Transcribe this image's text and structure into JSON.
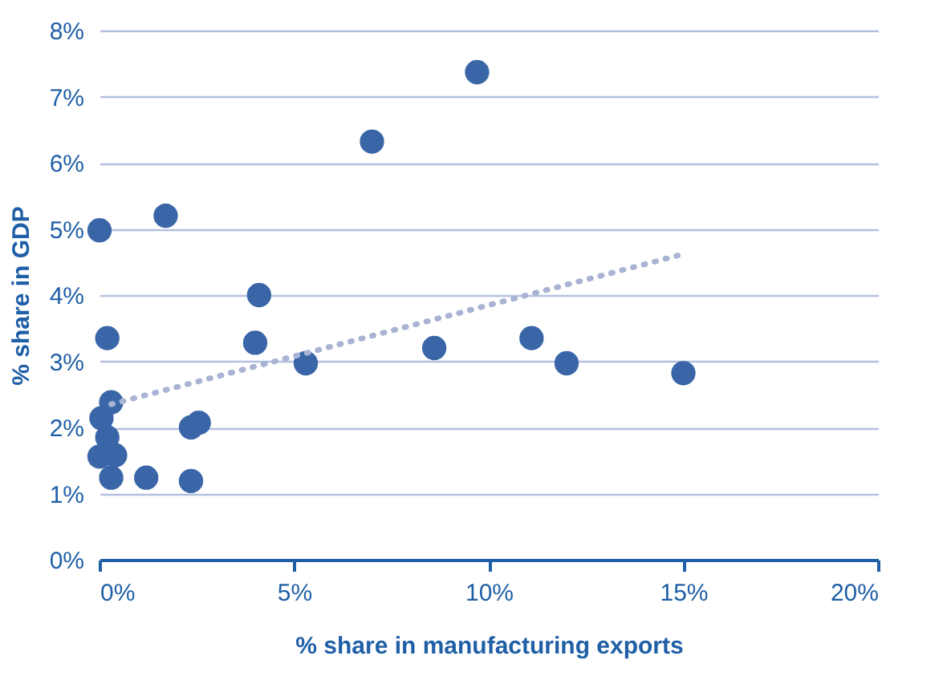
{
  "chart_data": {
    "type": "scatter",
    "xlabel": "% share in manufacturing exports",
    "ylabel": "% share in GDP",
    "xlim": [
      0,
      20
    ],
    "ylim": [
      0,
      8
    ],
    "xticks": [
      {
        "value": 0,
        "label": "0%"
      },
      {
        "value": 5,
        "label": "5%"
      },
      {
        "value": 10,
        "label": "10%"
      },
      {
        "value": 15,
        "label": "15%"
      },
      {
        "value": 20,
        "label": "20%"
      }
    ],
    "yticks": [
      {
        "value": 0,
        "label": "0%"
      },
      {
        "value": 1,
        "label": "1%"
      },
      {
        "value": 2,
        "label": "2%"
      },
      {
        "value": 3,
        "label": "3%"
      },
      {
        "value": 4,
        "label": "4%"
      },
      {
        "value": 5,
        "label": "5%"
      },
      {
        "value": 6,
        "label": "6%"
      },
      {
        "value": 7,
        "label": "7%"
      },
      {
        "value": 8,
        "label": "8%"
      }
    ],
    "grid": "y",
    "series": [
      {
        "color": "#3a66a8",
        "marker": "circle",
        "x": [
          0.0,
          1.7,
          0.2,
          4.1,
          4.0,
          5.3,
          7.0,
          9.7,
          8.6,
          11.1,
          12.0,
          15.0,
          0.3,
          0.05,
          0.2,
          0.0,
          0.4,
          0.3,
          1.2,
          2.35,
          2.35,
          2.55
        ],
        "values": [
          4.98,
          5.2,
          3.35,
          4.0,
          3.28,
          2.97,
          6.32,
          7.37,
          3.2,
          3.35,
          2.97,
          2.82,
          2.38,
          2.14,
          1.85,
          1.56,
          1.58,
          1.24,
          1.24,
          1.19,
          2.0,
          2.07
        ]
      },
      {
        "type": "line",
        "color": "#a9b4d4",
        "line_style": "dotted",
        "x": [
          0.3,
          15.0
        ],
        "values": [
          2.35,
          4.62
        ]
      }
    ]
  }
}
